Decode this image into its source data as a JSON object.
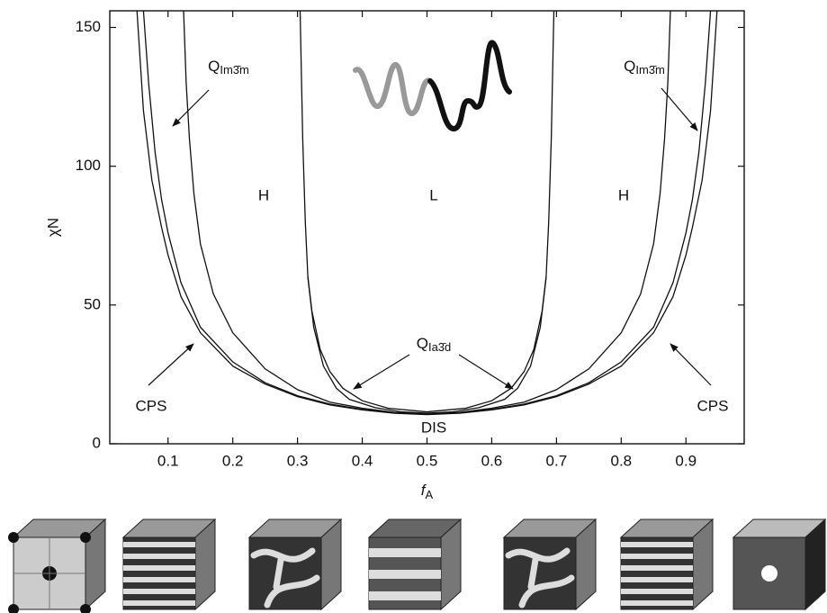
{
  "chart_data": {
    "type": "line",
    "xlabel": {
      "text": "f",
      "subscript": "A"
    },
    "ylabel": "χN",
    "xlim": [
      0.01,
      0.99
    ],
    "ylim": [
      0,
      156
    ],
    "xticks": [
      0.1,
      0.2,
      0.3,
      0.4,
      0.5,
      0.6,
      0.7,
      0.8,
      0.9
    ],
    "yticks": [
      0,
      50,
      100,
      150
    ],
    "series": [
      {
        "color": "#111111",
        "x": [
          0.052,
          0.062,
          0.075,
          0.09,
          0.1,
          0.12,
          0.15,
          0.2,
          0.25,
          0.3,
          0.35,
          0.4,
          0.45,
          0.5,
          0.55,
          0.6,
          0.65,
          0.7,
          0.75,
          0.8,
          0.85,
          0.88,
          0.9,
          0.91,
          0.925,
          0.938,
          0.948
        ],
        "values": [
          156,
          120,
          95,
          78,
          68,
          53,
          40,
          28,
          21.5,
          17,
          14,
          12.2,
          11,
          10.5,
          11,
          12.2,
          14,
          17,
          21.5,
          28,
          40,
          53,
          68,
          78,
          95,
          120,
          156
        ]
      },
      {
        "color": "#111111",
        "x": [
          0.062,
          0.07,
          0.08,
          0.09,
          0.1,
          0.12,
          0.15,
          0.2,
          0.25,
          0.3,
          0.35,
          0.4,
          0.45,
          0.5,
          0.55,
          0.6,
          0.65,
          0.7,
          0.75,
          0.8,
          0.85,
          0.88,
          0.9,
          0.91,
          0.92,
          0.93,
          0.938
        ],
        "values": [
          156,
          130,
          105,
          88,
          76,
          58,
          42,
          29.5,
          22,
          17.3,
          14.3,
          12.4,
          11.1,
          10.6,
          11.1,
          12.4,
          14.3,
          17.3,
          22,
          29.5,
          42,
          58,
          76,
          88,
          105,
          130,
          156
        ]
      },
      {
        "color": "#111111",
        "x": [
          0.124,
          0.128,
          0.133,
          0.14,
          0.15,
          0.17,
          0.2,
          0.25,
          0.3,
          0.35,
          0.4,
          0.45,
          0.5,
          0.55,
          0.6,
          0.65,
          0.7,
          0.75,
          0.8,
          0.83,
          0.85,
          0.86,
          0.867,
          0.872,
          0.876
        ],
        "values": [
          156,
          130,
          110,
          90,
          72,
          54,
          40,
          27,
          19.5,
          15,
          12.8,
          11.3,
          10.8,
          11.3,
          12.8,
          15,
          19.5,
          27,
          40,
          54,
          72,
          90,
          110,
          130,
          156
        ]
      },
      {
        "color": "#111111",
        "x": [
          0.304,
          0.308,
          0.312,
          0.316,
          0.325,
          0.34,
          0.36,
          0.38,
          0.42,
          0.46,
          0.5,
          0.54,
          0.58,
          0.62,
          0.64,
          0.66,
          0.675,
          0.684,
          0.688,
          0.692,
          0.696
        ],
        "values": [
          156,
          110,
          80,
          60,
          42,
          28,
          20,
          16,
          13,
          11.5,
          11,
          11.5,
          13,
          16,
          20,
          28,
          42,
          60,
          80,
          110,
          156
        ]
      },
      {
        "color": "#111111",
        "x": [
          0.316,
          0.322,
          0.335,
          0.35,
          0.37,
          0.4,
          0.44,
          0.5,
          0.56,
          0.6,
          0.63,
          0.65,
          0.665,
          0.678,
          0.684
        ],
        "values": [
          60,
          48,
          34,
          26,
          20,
          15.5,
          12.8,
          11.5,
          12.8,
          15.5,
          20,
          26,
          34,
          48,
          60
        ]
      }
    ],
    "annotations": [
      "H",
      "L",
      "H",
      "DIS",
      "CPS",
      "CPS"
    ],
    "phase_labels": [
      {
        "text": "Q",
        "subscript": "Im3̄m"
      },
      {
        "text": "Q",
        "subscript": "Im3̄m"
      },
      {
        "text": "Q",
        "subscript": "Ia3̄d"
      }
    ]
  }
}
